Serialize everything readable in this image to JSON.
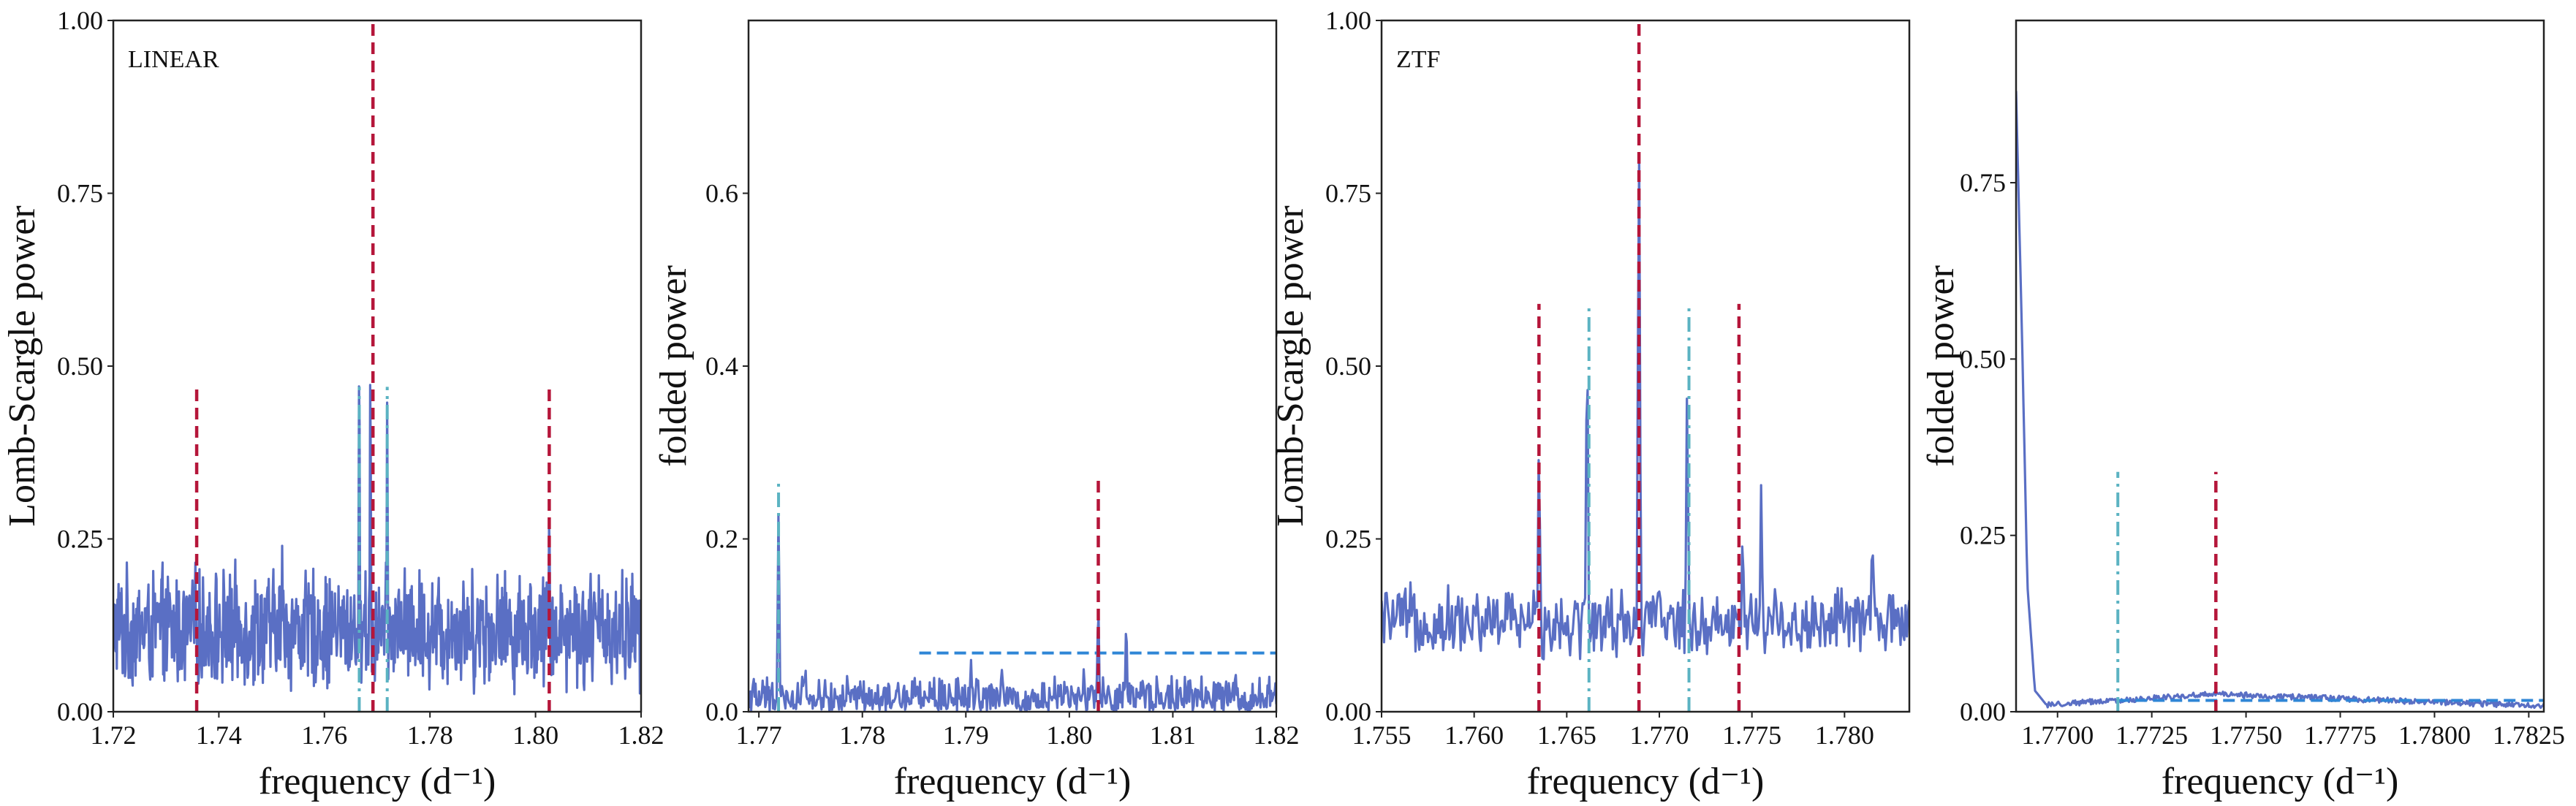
{
  "colors": {
    "periodogram": "#5a6fc4",
    "main_marker": "#b5163a",
    "alias_marker": "#5bb3c2",
    "threshold": "#2f86d6",
    "frame": "#222222"
  },
  "chart_data": [
    {
      "type": "line",
      "panel_label": "LINEAR",
      "xlabel": "frequency (d⁻¹)",
      "ylabel": "Lomb-Scargle power",
      "xlim": [
        1.72,
        1.82
      ],
      "ylim": [
        0.0,
        1.0
      ],
      "xticks": [
        1.72,
        1.74,
        1.76,
        1.78,
        1.8,
        1.82
      ],
      "xtick_labels": [
        "1.72",
        "1.74",
        "1.76",
        "1.78",
        "1.80",
        "1.82"
      ],
      "yticks": [
        0.0,
        0.25,
        0.5,
        0.75,
        1.0
      ],
      "ytick_labels": [
        "0.00",
        "0.25",
        "0.50",
        "0.75",
        "1.00"
      ],
      "grid": false,
      "series": [
        {
          "style": "noisy-periodogram",
          "baseline": 0.12,
          "noise_amplitude": 0.1,
          "points": 900,
          "x": [
            1.72,
            1.735,
            1.752,
            1.7666,
            1.7687,
            1.7719,
            1.79,
            1.8026,
            1.82
          ],
          "y": [
            0.06,
            0.19,
            0.24,
            0.52,
            0.5,
            0.45,
            0.16,
            0.3,
            0.14
          ]
        }
      ],
      "markers": [
        {
          "x": 1.7358,
          "y_range": [
            0.0,
            0.47
          ],
          "style": "main"
        },
        {
          "x": 1.7692,
          "y_range": [
            0.0,
            1.0
          ],
          "style": "main"
        },
        {
          "x": 1.8026,
          "y_range": [
            0.0,
            0.47
          ],
          "style": "main"
        },
        {
          "x": 1.7666,
          "y_range": [
            0.0,
            0.47
          ],
          "style": "alias"
        },
        {
          "x": 1.7719,
          "y_range": [
            0.0,
            0.47
          ],
          "style": "alias"
        }
      ],
      "thresholds": []
    },
    {
      "type": "line",
      "xlabel": "frequency (d⁻¹)",
      "ylabel": "folded power",
      "xlim": [
        1.769,
        1.82
      ],
      "ylim": [
        0.0,
        0.8
      ],
      "xticks": [
        1.77,
        1.78,
        1.79,
        1.8,
        1.81,
        1.82
      ],
      "xtick_labels": [
        "1.77",
        "1.78",
        "1.79",
        "1.80",
        "1.81",
        "1.82"
      ],
      "yticks": [
        0.0,
        0.2,
        0.4,
        0.6
      ],
      "ytick_labels": [
        "0.0",
        "0.2",
        "0.4",
        "0.6"
      ],
      "grid": false,
      "series": [
        {
          "style": "noisy-periodogram",
          "baseline": 0.015,
          "noise_amplitude": 0.03,
          "points": 600,
          "x": [
            1.7719,
            1.7745,
            1.7905,
            1.7935,
            1.8014,
            1.8028,
            1.8055
          ],
          "y": [
            0.23,
            0.05,
            0.06,
            0.05,
            0.05,
            0.12,
            0.1
          ]
        }
      ],
      "markers": [
        {
          "x": 1.7719,
          "y_range": [
            0.0,
            0.27
          ],
          "style": "alias"
        },
        {
          "x": 1.8028,
          "y_range": [
            0.0,
            0.27
          ],
          "style": "main"
        }
      ],
      "thresholds": [
        {
          "y": 0.068,
          "x_range": [
            1.7855,
            1.82
          ]
        }
      ]
    },
    {
      "type": "line",
      "panel_label": "ZTF",
      "xlabel": "frequency (d⁻¹)",
      "ylabel": "Lomb-Scargle power",
      "xlim": [
        1.755,
        1.7835
      ],
      "ylim": [
        0.0,
        1.0
      ],
      "xticks": [
        1.755,
        1.76,
        1.765,
        1.77,
        1.775,
        1.78
      ],
      "xtick_labels": [
        "1.755",
        "1.760",
        "1.765",
        "1.770",
        "1.775",
        "1.780"
      ],
      "yticks": [
        0.0,
        0.25,
        0.5,
        0.75,
        1.0
      ],
      "ytick_labels": [
        "0.00",
        "0.25",
        "0.50",
        "0.75",
        "1.00"
      ],
      "grid": false,
      "series": [
        {
          "style": "noisy-periodogram",
          "baseline": 0.13,
          "noise_amplitude": 0.06,
          "points": 420,
          "x": [
            1.7635,
            1.7661,
            1.7689,
            1.7715,
            1.7745,
            1.7755,
            1.7815
          ],
          "y": [
            0.38,
            0.52,
            0.82,
            0.46,
            0.26,
            0.33,
            0.26
          ]
        }
      ],
      "markers": [
        {
          "x": 1.7635,
          "y_range": [
            0.0,
            0.59
          ],
          "style": "main"
        },
        {
          "x": 1.7689,
          "y_range": [
            0.0,
            1.0
          ],
          "style": "main"
        },
        {
          "x": 1.7743,
          "y_range": [
            0.0,
            0.59
          ],
          "style": "main"
        },
        {
          "x": 1.7662,
          "y_range": [
            0.0,
            0.59
          ],
          "style": "alias"
        },
        {
          "x": 1.7716,
          "y_range": [
            0.0,
            0.59
          ],
          "style": "alias"
        }
      ],
      "thresholds": []
    },
    {
      "type": "line",
      "xlabel": "frequency (d⁻¹)",
      "ylabel": "folded power",
      "xlim": [
        1.7689,
        1.7829
      ],
      "ylim": [
        0.0,
        0.98
      ],
      "xticks": [
        1.77,
        1.7725,
        1.775,
        1.7775,
        1.78,
        1.7825
      ],
      "xtick_labels": [
        "1.7700",
        "1.7725",
        "1.7750",
        "1.7775",
        "1.7800",
        "1.7825"
      ],
      "yticks": [
        0.0,
        0.25,
        0.5,
        0.75
      ],
      "ytick_labels": [
        "0.00",
        "0.25",
        "0.50",
        "0.75"
      ],
      "grid": false,
      "series": [
        {
          "style": "smooth-decay",
          "x": [
            1.7689,
            1.76905,
            1.7692,
            1.7694,
            1.7697,
            1.7742,
            1.7829
          ],
          "y": [
            0.88,
            0.55,
            0.18,
            0.03,
            0.01,
            0.025,
            0.008
          ]
        }
      ],
      "markers": [
        {
          "x": 1.7716,
          "y_range": [
            0.0,
            0.34
          ],
          "style": "alias"
        },
        {
          "x": 1.7742,
          "y_range": [
            0.0,
            0.34
          ],
          "style": "main"
        }
      ],
      "thresholds": [
        {
          "y": 0.016,
          "x_range": [
            1.7716,
            1.7829
          ]
        }
      ]
    }
  ]
}
